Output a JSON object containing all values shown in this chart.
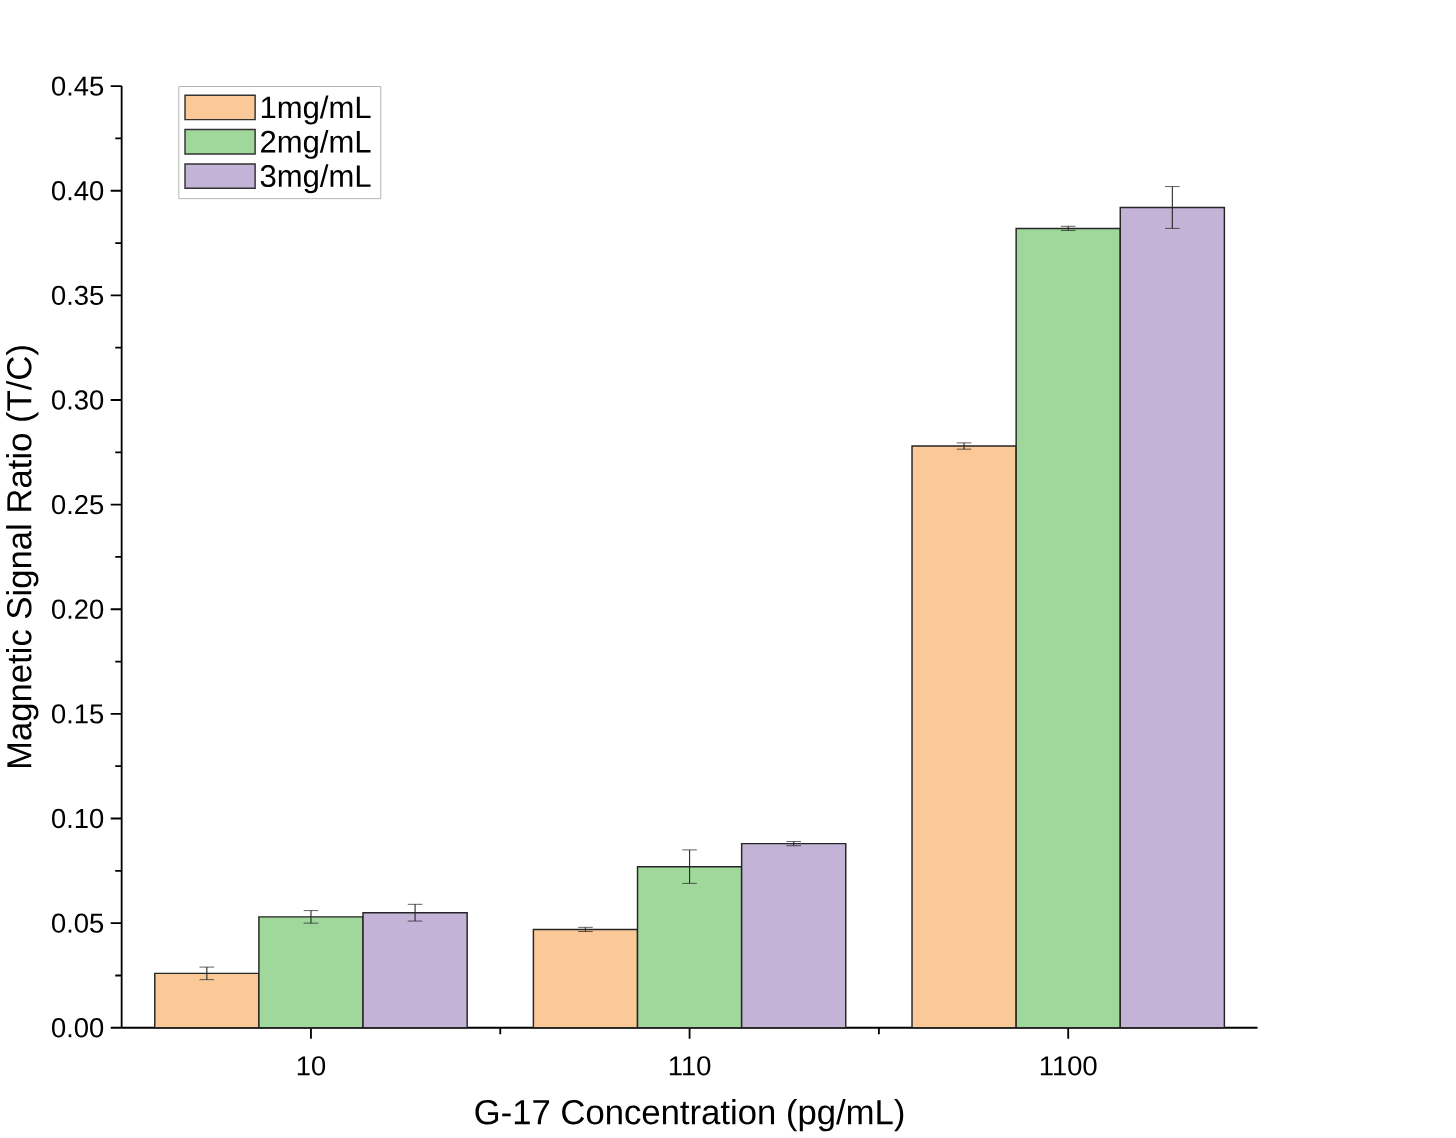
{
  "chart_data": {
    "type": "bar",
    "xlabel": "G-17 Concentration (pg/mL)",
    "ylabel": "Magnetic Signal Ratio (T/C)",
    "categories": [
      "10",
      "110",
      "1100"
    ],
    "series": [
      {
        "name": "1mg/mL",
        "color": "#fbc898",
        "values": [
          0.026,
          0.047,
          0.278
        ],
        "errors": [
          0.003,
          0.001,
          0.0015
        ]
      },
      {
        "name": "2mg/mL",
        "color": "#a0d89c",
        "values": [
          0.053,
          0.077,
          0.382
        ],
        "errors": [
          0.003,
          0.008,
          0.001
        ]
      },
      {
        "name": "3mg/mL",
        "color": "#c3b3d6",
        "values": [
          0.055,
          0.088,
          0.392
        ],
        "errors": [
          0.004,
          0.001,
          0.01
        ]
      }
    ],
    "ylim": [
      0,
      0.45
    ],
    "yticks": [
      {
        "value": 0,
        "label": "0.00"
      },
      {
        "value": 0.05,
        "label": "0.05"
      },
      {
        "value": 0.1,
        "label": "0.10"
      },
      {
        "value": 0.15,
        "label": "0.15"
      },
      {
        "value": 0.2,
        "label": "0.20"
      },
      {
        "value": 0.25,
        "label": "0.25"
      },
      {
        "value": 0.3,
        "label": "0.30"
      },
      {
        "value": 0.35,
        "label": "0.35"
      },
      {
        "value": 0.4,
        "label": "0.40"
      },
      {
        "value": 0.45,
        "label": "0.45"
      }
    ],
    "legend": "top left",
    "grid": false
  }
}
